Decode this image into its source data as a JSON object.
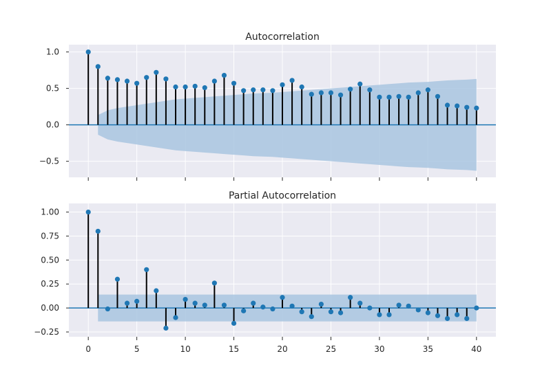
{
  "chart_data": [
    {
      "type": "stem",
      "title": "Autocorrelation",
      "xlabel": "",
      "ylabel": "",
      "xlim": [
        -2,
        42
      ],
      "ylim": [
        -0.72,
        1.1
      ],
      "yticks": [
        -0.5,
        0.0,
        0.5,
        1.0
      ],
      "ytick_labels": [
        "−0.5",
        "0.0",
        "0.5",
        "1.0"
      ],
      "xticks": [
        0,
        5,
        10,
        15,
        20,
        25,
        30,
        35,
        40
      ],
      "xtick_labels_shown": false,
      "grid": true,
      "lags": [
        0,
        1,
        2,
        3,
        4,
        5,
        6,
        7,
        8,
        9,
        10,
        11,
        12,
        13,
        14,
        15,
        16,
        17,
        18,
        19,
        20,
        21,
        22,
        23,
        24,
        25,
        26,
        27,
        28,
        29,
        30,
        31,
        32,
        33,
        34,
        35,
        36,
        37,
        38,
        39,
        40
      ],
      "values": [
        1.0,
        0.8,
        0.64,
        0.62,
        0.6,
        0.57,
        0.65,
        0.72,
        0.63,
        0.52,
        0.52,
        0.53,
        0.51,
        0.6,
        0.68,
        0.57,
        0.47,
        0.48,
        0.48,
        0.47,
        0.55,
        0.61,
        0.52,
        0.42,
        0.44,
        0.44,
        0.41,
        0.49,
        0.56,
        0.48,
        0.38,
        0.38,
        0.39,
        0.38,
        0.44,
        0.48,
        0.39,
        0.27,
        0.26,
        0.24,
        0.23
      ],
      "confidence_band": {
        "lags": [
          1,
          2,
          3,
          4,
          5,
          6,
          7,
          8,
          9,
          10,
          11,
          12,
          13,
          14,
          15,
          16,
          17,
          18,
          19,
          20,
          21,
          22,
          23,
          24,
          25,
          26,
          27,
          28,
          29,
          30,
          31,
          32,
          33,
          34,
          35,
          36,
          37,
          38,
          39,
          40
        ],
        "upper": [
          0.135,
          0.2,
          0.23,
          0.25,
          0.27,
          0.29,
          0.31,
          0.33,
          0.35,
          0.36,
          0.37,
          0.38,
          0.39,
          0.4,
          0.41,
          0.42,
          0.43,
          0.435,
          0.44,
          0.45,
          0.46,
          0.47,
          0.48,
          0.49,
          0.5,
          0.51,
          0.52,
          0.53,
          0.54,
          0.55,
          0.56,
          0.57,
          0.58,
          0.585,
          0.59,
          0.6,
          0.61,
          0.615,
          0.62,
          0.63
        ]
      }
    },
    {
      "type": "stem",
      "title": "Partial Autocorrelation",
      "xlabel": "",
      "ylabel": "",
      "xlim": [
        -2,
        42
      ],
      "ylim": [
        -0.3,
        1.09
      ],
      "yticks": [
        -0.25,
        0.0,
        0.25,
        0.5,
        0.75,
        1.0
      ],
      "ytick_labels": [
        "−0.25",
        "0.00",
        "0.25",
        "0.50",
        "0.75",
        "1.00"
      ],
      "xticks": [
        0,
        5,
        10,
        15,
        20,
        25,
        30,
        35,
        40
      ],
      "xtick_labels": [
        "0",
        "5",
        "10",
        "15",
        "20",
        "25",
        "30",
        "35",
        "40"
      ],
      "grid": true,
      "lags": [
        0,
        1,
        2,
        3,
        4,
        5,
        6,
        7,
        8,
        9,
        10,
        11,
        12,
        13,
        14,
        15,
        16,
        17,
        18,
        19,
        20,
        21,
        22,
        23,
        24,
        25,
        26,
        27,
        28,
        29,
        30,
        31,
        32,
        33,
        34,
        35,
        36,
        37,
        38,
        39,
        40
      ],
      "values": [
        1.0,
        0.8,
        -0.01,
        0.3,
        0.05,
        0.07,
        0.4,
        0.18,
        -0.21,
        -0.1,
        0.09,
        0.05,
        0.03,
        0.26,
        0.03,
        -0.16,
        -0.03,
        0.05,
        0.01,
        -0.01,
        0.11,
        0.02,
        -0.04,
        -0.09,
        0.04,
        -0.04,
        -0.05,
        0.11,
        0.05,
        0.0,
        -0.07,
        -0.07,
        0.03,
        0.02,
        -0.02,
        -0.05,
        -0.08,
        -0.11,
        -0.07,
        -0.11,
        0.0
      ],
      "confidence_band": {
        "lag_start": 1,
        "lag_end": 40,
        "upper": 0.14,
        "lower": -0.14
      }
    }
  ],
  "colors": {
    "axes_background": "#eaeaf2",
    "grid": "#ffffff",
    "marker": "#1f77b4",
    "stem": "#000000",
    "baseline": "#1f77b4",
    "band": "#a9c6e0",
    "text": "#262626"
  }
}
